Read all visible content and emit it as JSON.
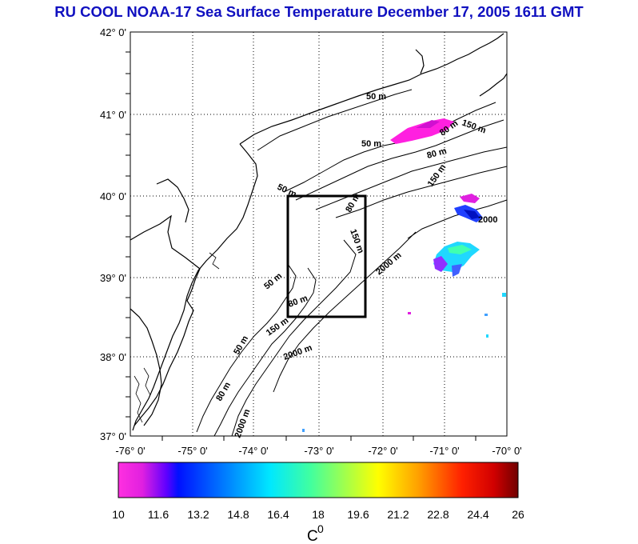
{
  "title": "RU COOL  NOAA-17 Sea Surface Temperature December 17, 2005 1611 GMT",
  "colors": {
    "title": "#1010c0",
    "frame": "#000000",
    "land_edge": "#000000"
  },
  "latitude_labels": [
    "42° 0'",
    "41° 0'",
    "40° 0'",
    "39° 0'",
    "38° 0'",
    "37° 0'"
  ],
  "longitude_labels": [
    "-76° 0'",
    "-75° 0'",
    "-74° 0'",
    "-73° 0'",
    "-72° 0'",
    "-71° 0'",
    "-70° 0'"
  ],
  "depth_labels": [
    "50 m",
    "50 m",
    "50 m",
    "50 m",
    "50 m",
    "80 m",
    "80 m",
    "80 m",
    "80 m",
    "80 m",
    "150 m",
    "150 m",
    "150 m",
    "150 m",
    "2000 m",
    "2000 m",
    "2000 m",
    "2000"
  ],
  "colorbar": {
    "ticks": [
      "10",
      "11.6",
      "13.2",
      "14.8",
      "16.4",
      "18",
      "19.6",
      "21.2",
      "22.8",
      "24.4",
      "26"
    ],
    "unit": "C",
    "unit_superscript": "0"
  },
  "study_box": {
    "lon_min": -73.5,
    "lon_max": -72.2,
    "lat_min": 38.5,
    "lat_max": 40.0
  }
}
